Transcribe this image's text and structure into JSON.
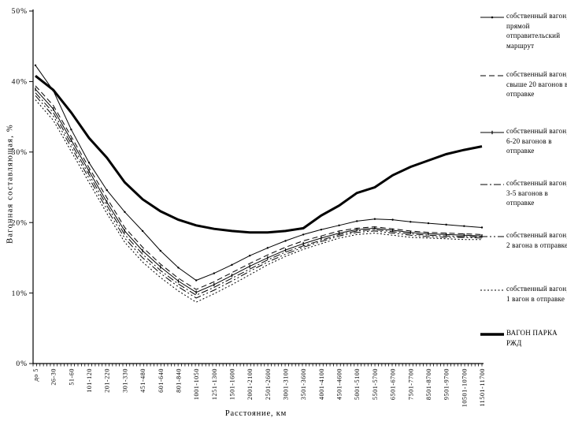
{
  "chart_data": {
    "type": "line",
    "title": "",
    "xlabel": "Расстояние, км",
    "ylabel": "Вагонная составляющая, %",
    "ylim": [
      0,
      50
    ],
    "y_tick_values": [
      0,
      10,
      20,
      30,
      40,
      50
    ],
    "y_ticks": [
      "0%",
      "10%",
      "20%",
      "30%",
      "40%",
      "50%"
    ],
    "grid": false,
    "legend_position": "right",
    "line_color": "#000000",
    "background_color": "#ffffff",
    "categories": [
      "до 5",
      "26-30",
      "51-60",
      "101-120",
      "201-220",
      "301-330",
      "451-480",
      "601-640",
      "801-840",
      "1001-1050",
      "1251-1300",
      "1501-1600",
      "2001-2100",
      "2501-2600",
      "3001-3100",
      "3501-3600",
      "4001-4100",
      "4501-4600",
      "5001-5100",
      "5501-5700",
      "6501-6700",
      "7501-7700",
      "8501-8700",
      "9501-9700",
      "10501-10700",
      "11501-11700"
    ],
    "series": [
      {
        "name": "собственный вагон, прямой отправительский маршрут",
        "style": "solid",
        "marker": "dot",
        "width": 1,
        "values": [
          42.3,
          38.7,
          33.2,
          28.5,
          24.6,
          21.5,
          18.8,
          16.0,
          13.6,
          11.8,
          12.8,
          14.0,
          15.3,
          16.4,
          17.4,
          18.3,
          19.0,
          19.6,
          20.2,
          20.5,
          20.4,
          20.1,
          19.9,
          19.7,
          19.5,
          19.3
        ]
      },
      {
        "name": "собственный вагон, свыше 20 вагонов в отправке",
        "style": "dashed",
        "marker": "none",
        "width": 1,
        "values": [
          39.4,
          36.6,
          32.2,
          27.8,
          23.5,
          19.3,
          16.5,
          14.1,
          12.1,
          10.5,
          11.6,
          12.9,
          14.2,
          15.4,
          16.5,
          17.4,
          18.1,
          18.8,
          19.2,
          19.4,
          19.1,
          18.8,
          18.6,
          18.5,
          18.4,
          18.3
        ]
      },
      {
        "name": "собственный вагон, 6-20 вагонов в отправке",
        "style": "solid",
        "marker": "tick",
        "width": 1,
        "values": [
          38.9,
          36.1,
          31.7,
          27.3,
          22.9,
          18.8,
          16.0,
          13.7,
          11.7,
          10.1,
          11.2,
          12.5,
          13.8,
          15.0,
          16.1,
          17.0,
          17.8,
          18.5,
          19.0,
          19.2,
          18.9,
          18.6,
          18.4,
          18.3,
          18.2,
          18.1
        ]
      },
      {
        "name": "собственный вагон, 3-5 вагонов в отправке",
        "style": "dash-dot",
        "marker": "none",
        "width": 1,
        "values": [
          38.4,
          35.6,
          31.2,
          26.8,
          22.4,
          18.3,
          15.5,
          13.2,
          11.3,
          9.7,
          10.8,
          12.1,
          13.4,
          14.7,
          15.8,
          16.7,
          17.5,
          18.3,
          18.8,
          19.0,
          18.7,
          18.4,
          18.2,
          18.1,
          18.0,
          18.0
        ]
      },
      {
        "name": "собственный вагон, 2 вагона в отправке",
        "style": "dash-dot-dot",
        "marker": "none",
        "width": 1,
        "values": [
          38.0,
          35.1,
          30.7,
          26.3,
          21.9,
          17.8,
          15.0,
          12.8,
          10.9,
          9.3,
          10.4,
          11.7,
          13.1,
          14.4,
          15.5,
          16.5,
          17.3,
          18.1,
          18.6,
          18.8,
          18.5,
          18.2,
          18.0,
          17.9,
          17.9,
          17.8
        ]
      },
      {
        "name": "собственный вагон, 1 вагон в отправке",
        "style": "dotted",
        "marker": "none",
        "width": 1,
        "values": [
          37.4,
          34.5,
          30.1,
          25.7,
          21.3,
          17.2,
          14.4,
          12.2,
          10.3,
          8.7,
          9.9,
          11.2,
          12.6,
          14.0,
          15.2,
          16.2,
          17.0,
          17.8,
          18.3,
          18.5,
          18.2,
          17.9,
          17.8,
          17.7,
          17.6,
          17.6
        ]
      },
      {
        "name": "ВАГОН ПАРКА РЖД",
        "style": "solid",
        "marker": "none",
        "width": 3,
        "values": [
          40.8,
          38.8,
          35.6,
          32.0,
          29.2,
          25.7,
          23.3,
          21.6,
          20.4,
          19.6,
          19.1,
          18.8,
          18.6,
          18.6,
          18.8,
          19.2,
          21.0,
          22.4,
          24.2,
          25.0,
          26.7,
          27.9,
          28.8,
          29.7,
          30.3,
          30.8
        ]
      }
    ]
  }
}
